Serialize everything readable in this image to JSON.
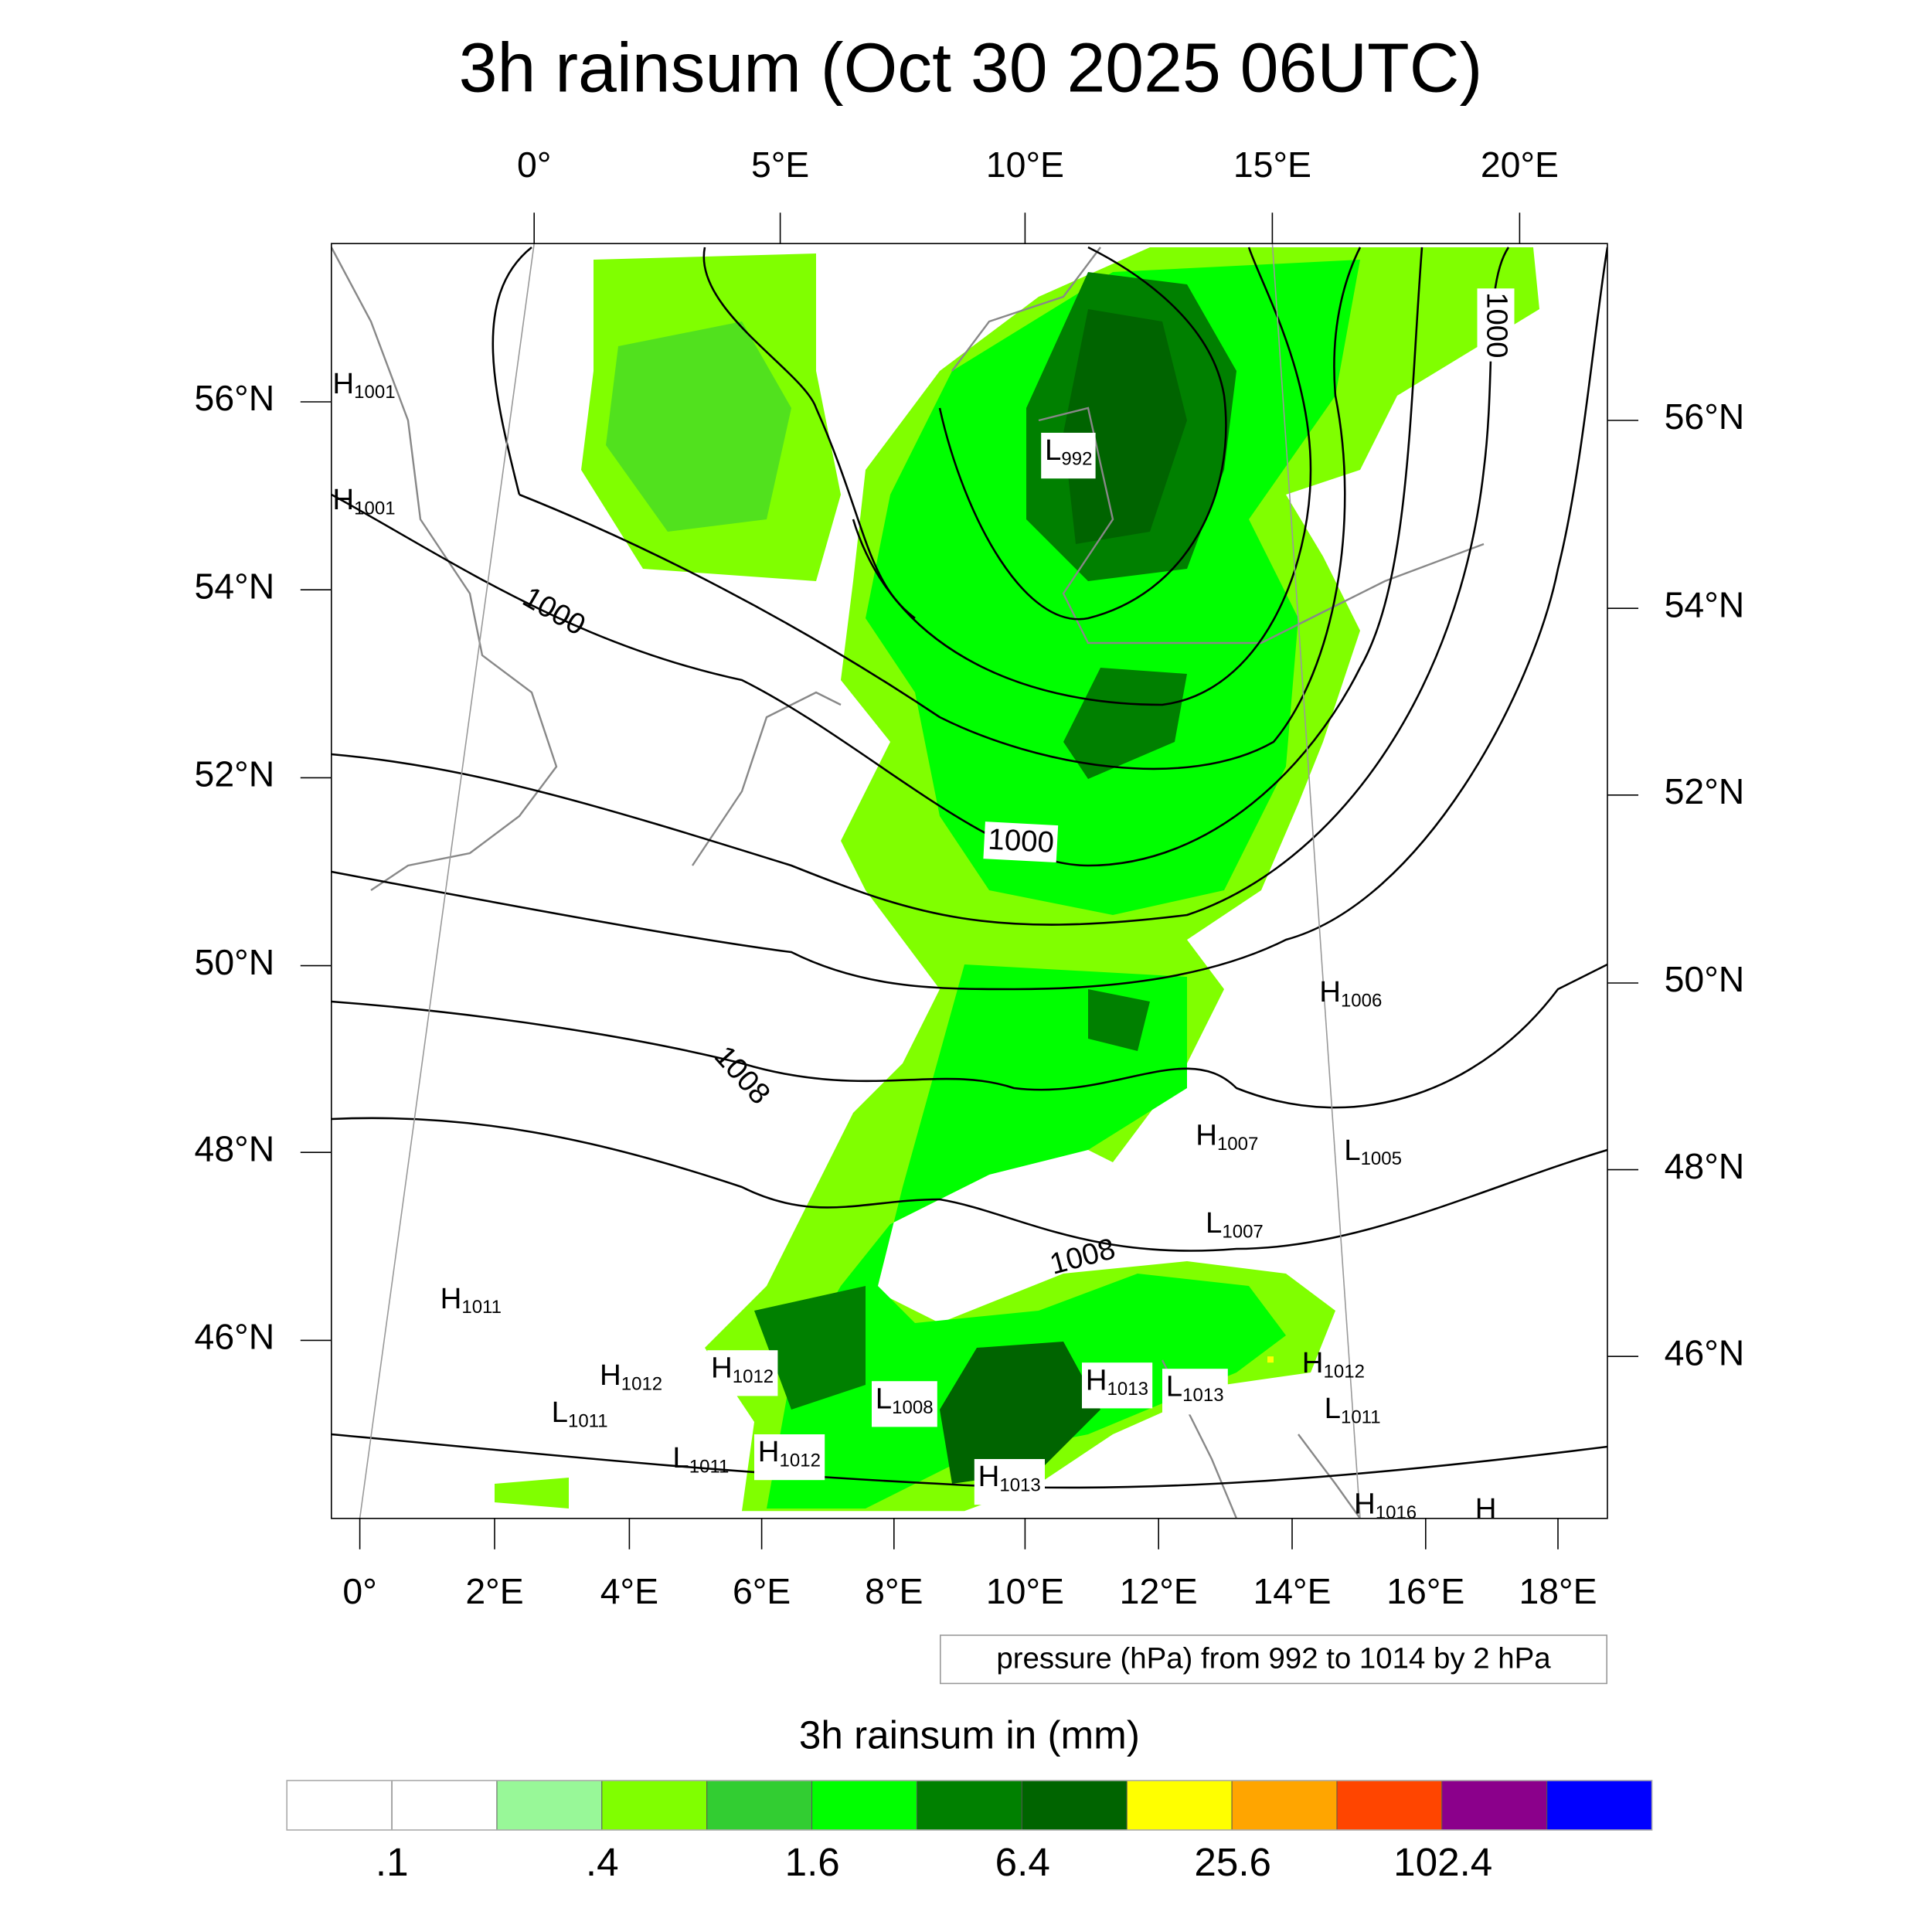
{
  "title": "3h rainsum (Oct 30 2025 06UTC)",
  "chart_data": {
    "type": "heatmap",
    "title": "3h rainsum (Oct 30 2025 06UTC)",
    "top_lon_ticks": [
      "0°",
      "5°E",
      "10°E",
      "15°E",
      "20°E"
    ],
    "bottom_lon_ticks": [
      "0°",
      "2°E",
      "4°E",
      "6°E",
      "8°E",
      "10°E",
      "12°E",
      "14°E",
      "16°E",
      "18°E"
    ],
    "left_lat_ticks": [
      "56°N",
      "54°N",
      "52°N",
      "50°N",
      "48°N",
      "46°N"
    ],
    "right_lat_ticks": [
      "56°N",
      "54°N",
      "52°N",
      "50°N",
      "48°N",
      "46°N"
    ],
    "contour_info": "pressure (hPa) from 992 to 1014 by 2 hPa",
    "contour_labels": [
      "1000",
      "1000",
      "1000",
      "1008",
      "1008"
    ],
    "pressure_centers": [
      {
        "type": "H",
        "value": "1001"
      },
      {
        "type": "H",
        "value": "1001"
      },
      {
        "type": "L",
        "value": "992"
      },
      {
        "type": "H",
        "value": "1006"
      },
      {
        "type": "H",
        "value": "1007"
      },
      {
        "type": "L",
        "value": "1005"
      },
      {
        "type": "L",
        "value": "1007"
      },
      {
        "type": "H",
        "value": "1011"
      },
      {
        "type": "H",
        "value": "1012"
      },
      {
        "type": "H",
        "value": "1012"
      },
      {
        "type": "L",
        "value": "1011"
      },
      {
        "type": "L",
        "value": "1008"
      },
      {
        "type": "H",
        "value": "1013"
      },
      {
        "type": "L",
        "value": "1013"
      },
      {
        "type": "H",
        "value": "1012"
      },
      {
        "type": "L",
        "value": "1011"
      },
      {
        "type": "L",
        "value": "1011"
      },
      {
        "type": "H",
        "value": "1012"
      },
      {
        "type": "H",
        "value": "1013"
      },
      {
        "type": "H",
        "value": "1016"
      },
      {
        "type": "H",
        "value": ""
      }
    ],
    "colorbar": {
      "title": "3h rainsum in (mm)",
      "labels": [
        ".1",
        ".4",
        "1.6",
        "6.4",
        "25.6",
        "102.4"
      ],
      "colors": [
        "#ffffff",
        "#ffffff",
        "#98f898",
        "#80ff00",
        "#32cd32",
        "#00ff00",
        "#008000",
        "#006400",
        "#ffff00",
        "#ffa500",
        "#ff4500",
        "#8b008b",
        "#0000ff"
      ]
    }
  }
}
